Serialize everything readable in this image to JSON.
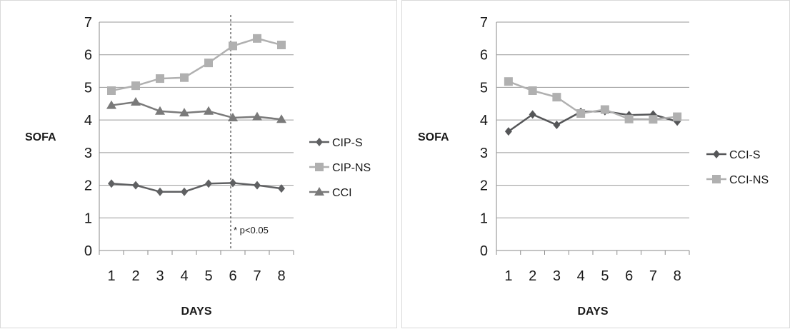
{
  "chart_data": [
    {
      "type": "line",
      "xlabel": "DAYS",
      "ylabel": "SOFA",
      "categories": [
        "1",
        "2",
        "3",
        "4",
        "5",
        "6",
        "7",
        "8"
      ],
      "yticks": [
        "0",
        "1",
        "2",
        "3",
        "4",
        "5",
        "6",
        "7"
      ],
      "ylim": [
        0,
        7
      ],
      "grid": "horizontal",
      "legend_position": "right",
      "annotation": {
        "text": "* p<0.05",
        "at_category": "6"
      },
      "series": [
        {
          "name": "CIP-S",
          "marker": "diamond",
          "color": "#5f6062",
          "values": [
            2.05,
            2.0,
            1.8,
            1.8,
            2.05,
            2.07,
            2.0,
            1.9
          ]
        },
        {
          "name": "CIP-NS",
          "marker": "square",
          "color": "#b0b0b0",
          "values": [
            4.9,
            5.05,
            5.27,
            5.3,
            5.75,
            6.27,
            6.5,
            6.3
          ]
        },
        {
          "name": "CCI",
          "marker": "triangle",
          "color": "#7a7a7a",
          "values": [
            4.45,
            4.55,
            4.27,
            4.22,
            4.27,
            4.07,
            4.1,
            4.02
          ]
        }
      ]
    },
    {
      "type": "line",
      "xlabel": "DAYS",
      "ylabel": "SOFA",
      "categories": [
        "1",
        "2",
        "3",
        "4",
        "5",
        "6",
        "7",
        "8"
      ],
      "yticks": [
        "0",
        "1",
        "2",
        "3",
        "4",
        "5",
        "6",
        "7"
      ],
      "ylim": [
        0,
        7
      ],
      "grid": "horizontal",
      "legend_position": "right",
      "series": [
        {
          "name": "CCI-S",
          "marker": "diamond",
          "color": "#555658",
          "values": [
            3.65,
            4.17,
            3.85,
            4.25,
            4.27,
            4.15,
            4.17,
            3.95
          ]
        },
        {
          "name": "CCI-NS",
          "marker": "square",
          "color": "#b0b0b0",
          "values": [
            5.18,
            4.9,
            4.7,
            4.2,
            4.32,
            4.03,
            4.02,
            4.1
          ]
        }
      ]
    }
  ]
}
